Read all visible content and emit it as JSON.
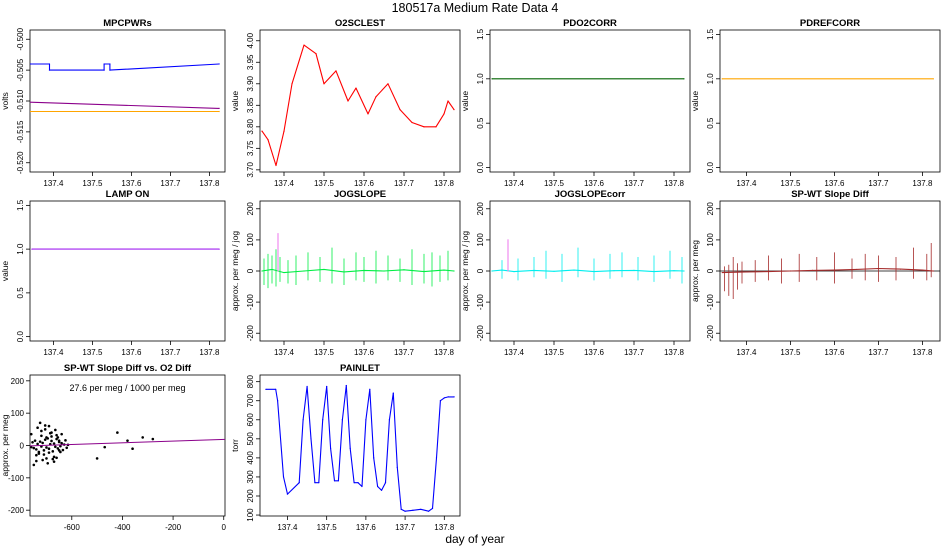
{
  "page": {
    "title": "180517a   Medium Rate Data 4",
    "xlabel": "day of year"
  },
  "chart_data": [
    {
      "title": "MPCPWRs",
      "type": "line",
      "ylabel": "volts",
      "xlim": [
        137.34,
        137.84
      ],
      "ylim": [
        -0.5215,
        -0.4985
      ],
      "xticks": [
        137.4,
        137.5,
        137.6,
        137.7,
        137.8
      ],
      "yticks": [
        -0.52,
        -0.515,
        -0.51,
        -0.505,
        -0.5
      ],
      "ytick_labels": [
        "-0.520",
        "-0.515",
        "-0.510",
        "-0.505",
        "-0.500"
      ],
      "ytick_rotate": true,
      "series": [
        {
          "color": "#0000ff",
          "x": [
            137.34,
            137.39,
            137.39,
            137.53,
            137.53,
            137.545,
            137.545,
            137.825
          ],
          "y": [
            -0.504,
            -0.504,
            -0.505,
            -0.505,
            -0.504,
            -0.504,
            -0.505,
            -0.504
          ]
        },
        {
          "color": "#8b008b",
          "x": [
            137.34,
            137.825
          ],
          "y": [
            -0.5102,
            -0.5112
          ]
        },
        {
          "color": "#ffa500",
          "x": [
            137.34,
            137.825
          ],
          "y": [
            -0.5117,
            -0.5117
          ]
        }
      ]
    },
    {
      "title": "O2SCLEST",
      "type": "line",
      "ylabel": "value",
      "xlim": [
        137.34,
        137.84
      ],
      "ylim": [
        3.695,
        4.025
      ],
      "xticks": [
        137.4,
        137.5,
        137.6,
        137.7,
        137.8
      ],
      "yticks": [
        3.7,
        3.75,
        3.8,
        3.85,
        3.9,
        3.95,
        4.0
      ],
      "ytick_labels": [
        "3.70",
        "3.75",
        "3.80",
        "3.85",
        "3.90",
        "3.95",
        "4.00"
      ],
      "ytick_rotate": true,
      "series": [
        {
          "color": "#ff0000",
          "x": [
            137.345,
            137.36,
            137.38,
            137.4,
            137.42,
            137.45,
            137.48,
            137.5,
            137.53,
            137.56,
            137.58,
            137.61,
            137.63,
            137.66,
            137.69,
            137.72,
            137.75,
            137.78,
            137.8,
            137.81,
            137.825
          ],
          "y": [
            3.79,
            3.77,
            3.71,
            3.79,
            3.9,
            3.99,
            3.97,
            3.9,
            3.93,
            3.86,
            3.89,
            3.83,
            3.87,
            3.9,
            3.84,
            3.81,
            3.8,
            3.8,
            3.83,
            3.86,
            3.84
          ]
        }
      ]
    },
    {
      "title": "PDO2CORR",
      "type": "line",
      "ylabel": "value",
      "xlim": [
        137.34,
        137.84
      ],
      "ylim": [
        -0.05,
        1.55
      ],
      "xticks": [
        137.4,
        137.5,
        137.6,
        137.7,
        137.8
      ],
      "yticks": [
        0.0,
        0.5,
        1.0,
        1.5
      ],
      "ytick_labels": [
        "0.0",
        "0.5",
        "1.0",
        "1.5"
      ],
      "ytick_rotate": true,
      "series": [
        {
          "color": "#006400",
          "x": [
            137.345,
            137.825
          ],
          "y": [
            1.0,
            1.0
          ]
        }
      ]
    },
    {
      "title": "PDREFCORR",
      "type": "line",
      "ylabel": "value",
      "xlim": [
        137.34,
        137.84
      ],
      "ylim": [
        -0.05,
        1.55
      ],
      "xticks": [
        137.4,
        137.5,
        137.6,
        137.7,
        137.8
      ],
      "yticks": [
        0.0,
        0.5,
        1.0,
        1.5
      ],
      "ytick_labels": [
        "0.0",
        "0.5",
        "1.0",
        "1.5"
      ],
      "ytick_rotate": true,
      "series": [
        {
          "color": "#ffa500",
          "x": [
            137.345,
            137.825
          ],
          "y": [
            1.0,
            1.0
          ]
        }
      ]
    },
    {
      "title": "LAMP ON",
      "type": "line",
      "ylabel": "value",
      "xlim": [
        137.34,
        137.84
      ],
      "ylim": [
        -0.05,
        1.55
      ],
      "xticks": [
        137.4,
        137.5,
        137.6,
        137.7,
        137.8
      ],
      "yticks": [
        0.0,
        0.5,
        1.0,
        1.5
      ],
      "ytick_labels": [
        "0.0",
        "0.5",
        "1.0",
        "1.5"
      ],
      "ytick_rotate": true,
      "series": [
        {
          "color": "#a020f0",
          "x": [
            137.345,
            137.825
          ],
          "y": [
            1.0,
            1.0
          ]
        }
      ]
    },
    {
      "title": "JOGSLOPE",
      "type": "line",
      "ylabel": "approx. per meg / jog",
      "xlim": [
        137.34,
        137.84
      ],
      "ylim": [
        -225,
        225
      ],
      "xticks": [
        137.4,
        137.5,
        137.6,
        137.7,
        137.8
      ],
      "yticks": [
        -200,
        -100,
        0,
        100,
        200
      ],
      "ytick_labels": [
        "-200",
        "-100",
        "0",
        "100",
        "200"
      ],
      "ytick_rotate": true,
      "series": [
        {
          "color": "#00ee44",
          "x": [
            137.345,
            137.37,
            137.4,
            137.45,
            137.5,
            137.55,
            137.6,
            137.65,
            137.7,
            137.75,
            137.8,
            137.825
          ],
          "y": [
            0,
            5,
            -5,
            0,
            5,
            -3,
            2,
            0,
            4,
            -2,
            3,
            0
          ]
        },
        {
          "color": "#ee82ee",
          "x": [
            137.385,
            137.385
          ],
          "y": [
            0,
            120
          ]
        }
      ],
      "spikes": {
        "color": "#00ee44",
        "x": [
          137.35,
          137.36,
          137.37,
          137.38,
          137.39,
          137.41,
          137.43,
          137.46,
          137.49,
          137.52,
          137.55,
          137.58,
          137.6,
          137.63,
          137.66,
          137.69,
          137.72,
          137.75,
          137.77,
          137.79,
          137.81
        ],
        "hi": [
          40,
          55,
          50,
          70,
          45,
          35,
          50,
          60,
          45,
          75,
          40,
          60,
          45,
          65,
          50,
          40,
          70,
          55,
          60,
          50,
          65
        ],
        "lo": [
          -45,
          -55,
          -40,
          -50,
          -35,
          -40,
          -45,
          -30,
          -35,
          -40,
          -45,
          -30,
          -35,
          -40,
          -30,
          -35,
          -45,
          -40,
          -50,
          -35,
          -30
        ]
      }
    },
    {
      "title": "JOGSLOPEcorr",
      "type": "line",
      "ylabel": "approx. per meg / jog",
      "xlim": [
        137.34,
        137.84
      ],
      "ylim": [
        -225,
        225
      ],
      "xticks": [
        137.4,
        137.5,
        137.6,
        137.7,
        137.8
      ],
      "yticks": [
        -200,
        -100,
        0,
        100,
        200
      ],
      "ytick_labels": [
        "-200",
        "-100",
        "0",
        "100",
        "200"
      ],
      "ytick_rotate": true,
      "series": [
        {
          "color": "#00eeee",
          "x": [
            137.345,
            137.37,
            137.4,
            137.45,
            137.5,
            137.55,
            137.6,
            137.65,
            137.7,
            137.75,
            137.8,
            137.825
          ],
          "y": [
            0,
            3,
            -2,
            2,
            -1,
            3,
            -2,
            1,
            2,
            -2,
            1,
            0
          ]
        },
        {
          "color": "#ee82ee",
          "x": [
            137.385,
            137.385
          ],
          "y": [
            0,
            100
          ]
        }
      ],
      "spikes": {
        "color": "#00eeee",
        "x": [
          137.37,
          137.41,
          137.45,
          137.48,
          137.52,
          137.56,
          137.6,
          137.64,
          137.67,
          137.71,
          137.75,
          137.79,
          137.82
        ],
        "hi": [
          35,
          40,
          45,
          65,
          55,
          75,
          40,
          55,
          60,
          45,
          50,
          65,
          45
        ],
        "lo": [
          -25,
          -30,
          -20,
          -25,
          -35,
          -20,
          -30,
          -25,
          -20,
          -30,
          -35,
          -25,
          -40
        ]
      }
    },
    {
      "title": "SP-WT Slope Diff",
      "type": "line",
      "ylabel": "approx. per meg",
      "xlim": [
        137.34,
        137.84
      ],
      "ylim": [
        -225,
        225
      ],
      "xticks": [
        137.4,
        137.5,
        137.6,
        137.7,
        137.8
      ],
      "yticks": [
        -200,
        -100,
        0,
        100,
        200
      ],
      "ytick_labels": [
        "-200",
        "-100",
        "0",
        "100",
        "200"
      ],
      "ytick_rotate": true,
      "refline": 0,
      "series": [
        {
          "color": "#a52a2a",
          "x": [
            137.345,
            137.4,
            137.45,
            137.5,
            137.55,
            137.6,
            137.65,
            137.7,
            137.75,
            137.8,
            137.825
          ],
          "y": [
            -5,
            -3,
            -2,
            0,
            2,
            3,
            5,
            8,
            6,
            3,
            0
          ]
        }
      ],
      "spikes": {
        "color": "#a52a2a",
        "x": [
          137.35,
          137.36,
          137.37,
          137.38,
          137.39,
          137.42,
          137.45,
          137.48,
          137.52,
          137.56,
          137.6,
          137.64,
          137.67,
          137.7,
          137.74,
          137.78,
          137.81,
          137.82
        ],
        "hi": [
          15,
          20,
          45,
          25,
          30,
          35,
          50,
          40,
          55,
          45,
          60,
          40,
          55,
          50,
          45,
          75,
          55,
          90
        ],
        "lo": [
          -65,
          -80,
          -90,
          -60,
          -40,
          -35,
          -30,
          -40,
          -35,
          -30,
          -40,
          -25,
          -30,
          -35,
          -30,
          -25,
          -30,
          -20
        ]
      }
    },
    {
      "title": "SP-WT Slope Diff vs. O2 Diff",
      "type": "scatter",
      "ylabel": "approx. per meg",
      "subtitle": "27.6 per meg / 1000 per meg",
      "subtitle_color": "#8b008b",
      "xlim": [
        -765,
        5
      ],
      "ylim": [
        -218,
        218
      ],
      "xticks": [
        -600,
        -400,
        -200,
        0
      ],
      "xtick_labels": [
        "-600",
        "-400",
        "-200",
        "0"
      ],
      "yticks": [
        -200,
        -100,
        0,
        100,
        200
      ],
      "ytick_labels": [
        "-200",
        "-100",
        "0",
        "100",
        "200"
      ],
      "ytick_rotate": false,
      "fit": {
        "color": "#8b008b",
        "x": [
          -765,
          5
        ],
        "y": [
          -1,
          19
        ]
      },
      "points": {
        "color": "#000000",
        "x": [
          -760,
          -755,
          -750,
          -745,
          -740,
          -735,
          -730,
          -725,
          -720,
          -715,
          -710,
          -705,
          -700,
          -695,
          -690,
          -685,
          -680,
          -675,
          -670,
          -665,
          -660,
          -655,
          -650,
          -645,
          -640,
          -635,
          -630,
          -625,
          -620,
          -615,
          -740,
          -730,
          -720,
          -710,
          -700,
          -690,
          -680,
          -670,
          -660,
          -650,
          -720,
          -700,
          -680,
          -660,
          -640,
          -690,
          -670,
          -650,
          -735,
          -725,
          -715,
          -705,
          -695,
          -685,
          -675,
          -665,
          -655,
          -645,
          -750,
          -500,
          -470,
          -420,
          -380,
          -360,
          -320,
          -280,
          -760,
          -740,
          -705
        ],
        "y": [
          -5,
          10,
          -8,
          15,
          -12,
          5,
          -20,
          12,
          -3,
          8,
          -15,
          18,
          -6,
          22,
          -10,
          4,
          14,
          -18,
          6,
          -4,
          20,
          -9,
          11,
          -2,
          7,
          -14,
          3,
          16,
          -7,
          2,
          -30,
          -25,
          30,
          -28,
          25,
          -22,
          28,
          -35,
          32,
          -15,
          45,
          -40,
          40,
          -38,
          35,
          60,
          -50,
          15,
          55,
          70,
          -45,
          50,
          -55,
          38,
          -42,
          48,
          25,
          -20,
          -60,
          -40,
          -5,
          40,
          15,
          -10,
          25,
          20,
          35,
          -48,
          62
        ]
      }
    },
    {
      "title": "PAINLET",
      "type": "line",
      "ylabel": "torr",
      "xlim": [
        137.33,
        137.84
      ],
      "ylim": [
        95,
        835
      ],
      "xticks": [
        137.4,
        137.5,
        137.6,
        137.7,
        137.8
      ],
      "yticks": [
        100,
        200,
        300,
        400,
        500,
        600,
        700,
        800
      ],
      "ytick_labels": [
        "100",
        "200",
        "300",
        "400",
        "500",
        "600",
        "700",
        "800"
      ],
      "ytick_rotate": true,
      "series": [
        {
          "color": "#0000ff",
          "x": [
            137.345,
            137.37,
            137.375,
            137.39,
            137.4,
            137.43,
            137.44,
            137.45,
            137.46,
            137.47,
            137.48,
            137.49,
            137.5,
            137.51,
            137.52,
            137.53,
            137.54,
            137.55,
            137.56,
            137.57,
            137.58,
            137.59,
            137.6,
            137.61,
            137.62,
            137.63,
            137.64,
            137.65,
            137.66,
            137.67,
            137.68,
            137.69,
            137.7,
            137.72,
            137.74,
            137.76,
            137.77,
            137.78,
            137.79,
            137.8,
            137.81,
            137.825
          ],
          "y": [
            760,
            760,
            700,
            300,
            210,
            270,
            600,
            775,
            500,
            270,
            270,
            600,
            775,
            450,
            280,
            280,
            600,
            780,
            450,
            270,
            270,
            250,
            600,
            760,
            400,
            250,
            230,
            270,
            600,
            740,
            350,
            130,
            120,
            125,
            130,
            120,
            135,
            400,
            700,
            715,
            720,
            720
          ]
        }
      ]
    }
  ]
}
